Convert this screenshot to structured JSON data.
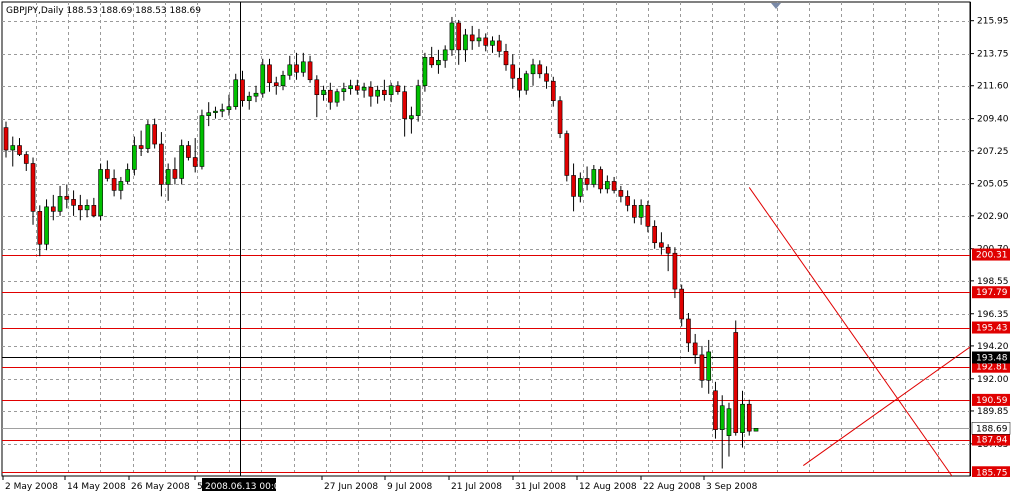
{
  "chart_data": {
    "type": "candlestick",
    "symbol_header": "GBPJPY,Daily  188.53 188.69 188.53 188.69",
    "ohlc_last": {
      "open": 188.53,
      "high": 188.69,
      "low": 188.53,
      "close": 188.69
    },
    "ylim": [
      185.5,
      217.2
    ],
    "y_ticks": [
      "215.95",
      "213.75",
      "211.60",
      "209.40",
      "207.25",
      "205.05",
      "202.90",
      "200.70",
      "198.55",
      "196.35",
      "194.20",
      "192.00",
      "189.85",
      "187.65"
    ],
    "x_tick_labels": [
      "2 May 2008",
      "14 May 2008",
      "26 May 2008",
      "5 Jun 2008",
      "27 Jun 2008",
      "9 Jul 2008",
      "21 Jul 2008",
      "31 Jul 2008",
      "12 Aug 2008",
      "22 Aug 2008",
      "3 Sep 2008"
    ],
    "crosshair_time_label": "2008.06.13 00:00",
    "crosshair_price_label": "193.48",
    "current_price_label": "188.69",
    "horizontal_levels": [
      {
        "label": "200.31",
        "value": 200.31,
        "color": "#e00000"
      },
      {
        "label": "197.79",
        "value": 197.79,
        "color": "#e00000"
      },
      {
        "label": "195.43",
        "value": 195.43,
        "color": "#e00000"
      },
      {
        "label": "192.81",
        "value": 192.81,
        "color": "#e00000"
      },
      {
        "label": "190.59",
        "value": 190.59,
        "color": "#e00000"
      },
      {
        "label": "187.94",
        "value": 187.94,
        "color": "#e00000"
      },
      {
        "label": "185.75",
        "value": 185.75,
        "color": "#e00000"
      }
    ],
    "colors": {
      "bull": "#00c000",
      "bear": "#e00000",
      "wick": "#000000",
      "grid": "#9a9a9a",
      "level": "#e00000",
      "trend": "#e00000"
    },
    "trendlines": [
      {
        "from": {
          "bar": 110,
          "price": 204.8
        },
        "to": {
          "bar": 140,
          "price": 185.5
        }
      },
      {
        "from": {
          "bar": 118,
          "price": 186.2
        },
        "to": {
          "bar": 170,
          "price": 202.9
        }
      }
    ],
    "candles": [
      [
        208.8,
        209.2,
        206.8,
        207.3
      ],
      [
        207.3,
        208.2,
        206.2,
        207.6
      ],
      [
        207.6,
        208.1,
        206.9,
        207.0
      ],
      [
        207.0,
        207.2,
        205.9,
        206.4
      ],
      [
        206.4,
        206.8,
        202.3,
        203.2
      ],
      [
        203.2,
        203.6,
        200.2,
        201.0
      ],
      [
        201.0,
        204.0,
        200.6,
        203.5
      ],
      [
        203.5,
        204.3,
        202.6,
        203.2
      ],
      [
        203.2,
        204.9,
        202.9,
        204.2
      ],
      [
        204.2,
        205.0,
        203.4,
        204.0
      ],
      [
        204.0,
        204.6,
        202.9,
        203.6
      ],
      [
        203.6,
        204.3,
        202.6,
        203.3
      ],
      [
        203.3,
        204.0,
        202.8,
        203.6
      ],
      [
        203.6,
        204.1,
        202.8,
        202.9
      ],
      [
        202.9,
        206.4,
        202.6,
        206.0
      ],
      [
        206.0,
        206.6,
        205.2,
        205.4
      ],
      [
        205.4,
        206.0,
        204.2,
        204.6
      ],
      [
        204.6,
        205.5,
        204.0,
        205.2
      ],
      [
        205.2,
        206.4,
        205.0,
        206.0
      ],
      [
        206.0,
        208.2,
        205.6,
        207.6
      ],
      [
        207.6,
        208.6,
        206.9,
        207.4
      ],
      [
        207.4,
        209.3,
        207.1,
        209.0
      ],
      [
        209.0,
        209.4,
        207.4,
        207.7
      ],
      [
        207.7,
        208.5,
        204.2,
        205.0
      ],
      [
        205.0,
        206.4,
        203.9,
        206.0
      ],
      [
        206.0,
        206.8,
        205.0,
        205.4
      ],
      [
        205.4,
        208.0,
        205.0,
        207.6
      ],
      [
        207.6,
        207.9,
        206.6,
        206.8
      ],
      [
        206.8,
        208.1,
        205.8,
        206.2
      ],
      [
        206.2,
        210.0,
        206.0,
        209.6
      ],
      [
        209.6,
        210.5,
        208.9,
        209.8
      ],
      [
        209.8,
        210.2,
        209.4,
        209.9
      ],
      [
        209.9,
        210.4,
        209.5,
        210.0
      ],
      [
        210.0,
        211.0,
        209.6,
        210.2
      ],
      [
        210.2,
        212.4,
        210.0,
        212.0
      ],
      [
        212.0,
        212.6,
        210.2,
        210.6
      ],
      [
        210.6,
        211.2,
        210.0,
        210.9
      ],
      [
        210.9,
        211.6,
        210.5,
        211.1
      ],
      [
        211.1,
        213.4,
        210.8,
        213.0
      ],
      [
        213.0,
        213.4,
        211.2,
        211.8
      ],
      [
        211.8,
        212.2,
        211.0,
        211.6
      ],
      [
        211.6,
        212.6,
        211.3,
        212.3
      ],
      [
        212.3,
        213.6,
        212.0,
        213.0
      ],
      [
        213.0,
        213.8,
        212.0,
        212.5
      ],
      [
        212.5,
        213.8,
        212.2,
        213.2
      ],
      [
        213.2,
        213.6,
        211.8,
        212.0
      ],
      [
        212.0,
        212.3,
        209.5,
        211.0
      ],
      [
        211.0,
        211.6,
        210.6,
        211.3
      ],
      [
        211.3,
        211.8,
        210.0,
        210.5
      ],
      [
        210.5,
        211.4,
        210.2,
        211.2
      ],
      [
        211.2,
        211.8,
        210.6,
        211.4
      ],
      [
        211.4,
        212.0,
        211.0,
        211.6
      ],
      [
        211.6,
        212.0,
        211.0,
        211.3
      ],
      [
        211.3,
        211.8,
        210.8,
        211.5
      ],
      [
        211.5,
        211.9,
        210.2,
        210.9
      ],
      [
        210.9,
        211.6,
        210.4,
        211.3
      ],
      [
        211.3,
        212.0,
        210.6,
        211.0
      ],
      [
        211.0,
        211.8,
        210.5,
        211.6
      ],
      [
        211.6,
        211.9,
        211.0,
        211.2
      ],
      [
        211.2,
        211.6,
        208.2,
        209.4
      ],
      [
        209.4,
        210.2,
        208.4,
        209.6
      ],
      [
        209.6,
        212.0,
        209.2,
        211.6
      ],
      [
        211.6,
        213.8,
        211.2,
        213.5
      ],
      [
        213.5,
        214.2,
        212.8,
        213.0
      ],
      [
        213.0,
        214.0,
        212.4,
        213.3
      ],
      [
        213.3,
        214.3,
        212.8,
        214.0
      ],
      [
        214.0,
        216.2,
        213.6,
        215.8
      ],
      [
        215.8,
        216.0,
        213.0,
        214.0
      ],
      [
        214.0,
        215.4,
        213.2,
        215.0
      ],
      [
        215.0,
        215.6,
        214.0,
        214.6
      ],
      [
        214.6,
        215.4,
        214.2,
        214.8
      ],
      [
        214.8,
        215.1,
        213.9,
        214.3
      ],
      [
        214.3,
        214.9,
        213.8,
        214.6
      ],
      [
        214.6,
        215.0,
        213.5,
        213.9
      ],
      [
        213.9,
        214.4,
        212.6,
        213.0
      ],
      [
        213.0,
        213.7,
        211.4,
        212.1
      ],
      [
        212.1,
        212.8,
        210.8,
        211.3
      ],
      [
        211.3,
        212.6,
        211.0,
        212.4
      ],
      [
        212.4,
        213.4,
        211.6,
        213.0
      ],
      [
        213.0,
        213.3,
        212.1,
        212.4
      ],
      [
        212.4,
        212.9,
        211.4,
        211.9
      ],
      [
        211.9,
        212.2,
        210.2,
        210.6
      ],
      [
        210.6,
        210.9,
        208.1,
        208.4
      ],
      [
        208.4,
        208.6,
        205.2,
        205.6
      ],
      [
        205.6,
        206.4,
        203.2,
        204.2
      ],
      [
        204.2,
        205.8,
        203.8,
        205.4
      ],
      [
        205.4,
        206.2,
        204.6,
        205.0
      ],
      [
        205.0,
        206.3,
        204.8,
        206.0
      ],
      [
        206.0,
        206.2,
        204.4,
        204.7
      ],
      [
        204.7,
        205.6,
        204.4,
        205.2
      ],
      [
        205.2,
        205.5,
        204.4,
        204.6
      ],
      [
        204.6,
        204.9,
        203.8,
        204.2
      ],
      [
        204.2,
        204.6,
        203.2,
        203.6
      ],
      [
        203.6,
        204.0,
        202.4,
        202.8
      ],
      [
        202.8,
        204.0,
        202.3,
        203.6
      ],
      [
        203.6,
        203.9,
        201.8,
        202.2
      ],
      [
        202.2,
        202.6,
        200.7,
        201.1
      ],
      [
        201.1,
        201.8,
        200.3,
        200.8
      ],
      [
        200.8,
        201.0,
        199.2,
        200.4
      ],
      [
        200.4,
        200.8,
        197.4,
        198.0
      ],
      [
        198.0,
        198.3,
        195.5,
        196.0
      ],
      [
        196.0,
        196.4,
        193.8,
        194.4
      ],
      [
        194.4,
        195.0,
        193.0,
        193.6
      ],
      [
        193.6,
        194.2,
        191.4,
        191.9
      ],
      [
        191.9,
        194.6,
        191.0,
        193.8
      ],
      [
        191.2,
        191.8,
        188.0,
        188.6
      ],
      [
        188.6,
        190.9,
        186.0,
        190.2
      ],
      [
        188.2,
        190.4,
        186.8,
        190.0
      ],
      [
        195.1,
        195.9,
        188.2,
        188.4
      ],
      [
        188.4,
        191.2,
        187.4,
        190.3
      ],
      [
        190.3,
        190.6,
        188.2,
        188.5
      ],
      [
        188.5,
        188.69,
        188.53,
        188.69
      ]
    ]
  }
}
